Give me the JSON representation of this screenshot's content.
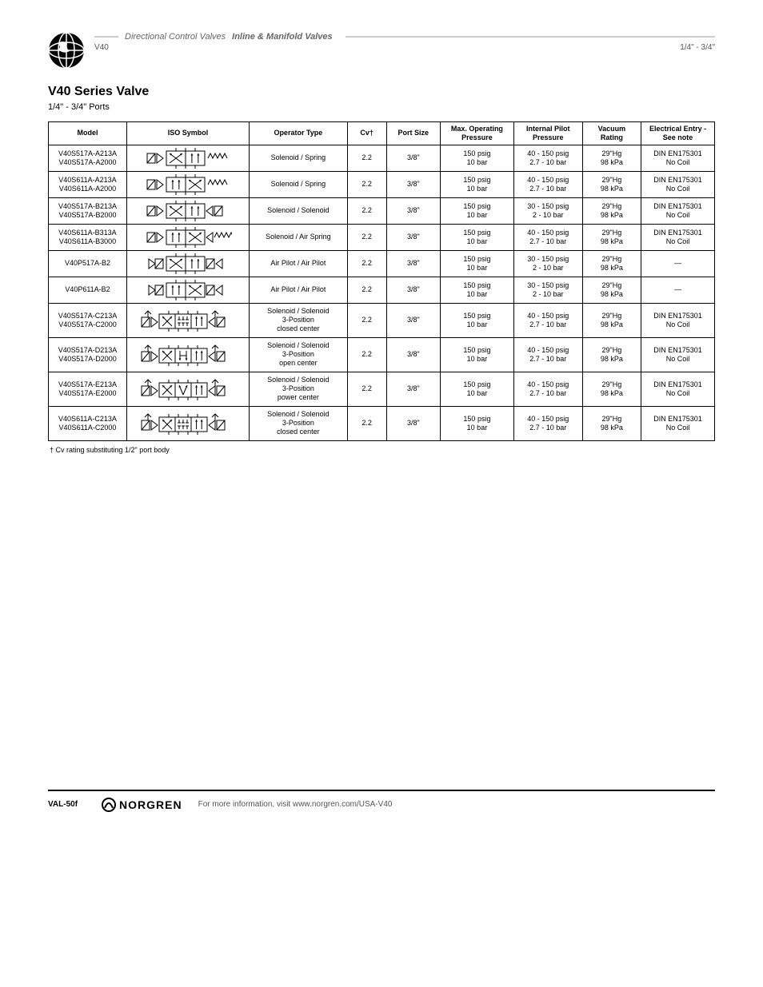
{
  "header": {
    "breadcrumb_prefix": "Directional Control Valves",
    "breadcrumb_main": "Inline & Manifold Valves",
    "sub_left": "V40",
    "sub_right": "1/4\" - 3/4\""
  },
  "section": {
    "title": "V40 Series Valve",
    "sub": "1/4\" - 3/4\" Ports"
  },
  "table": {
    "columns": [
      "Model",
      "ISO Symbol",
      "Operator Type",
      "Cv†",
      "Port Size",
      "Max. Operating Pressure",
      "Internal Pilot Pressure",
      "Vacuum Rating",
      "Electrical Entry - See note"
    ],
    "rows": [
      {
        "model_lines": [
          "V40S517A-A213A",
          "V40S517A-A2000"
        ],
        "symbol": "sol2_spring_2pos_open",
        "op": "Solenoid / Spring",
        "cv": "2.2",
        "port": "3/8\"",
        "press_lines": [
          "150 psig",
          "10 bar"
        ],
        "pilot_lines": [
          "40 - 150 psig",
          "2.7 - 10 bar"
        ],
        "vac_lines": [
          "29\"Hg",
          "98 kPa"
        ],
        "note_lines": [
          "DIN EN175301",
          "No Coil"
        ]
      },
      {
        "model_lines": [
          "V40S611A-A213A",
          "V40S611A-A2000"
        ],
        "symbol": "sol2_spring_2pos_closed",
        "op": "Solenoid / Spring",
        "cv": "2.2",
        "port": "3/8\"",
        "press_lines": [
          "150 psig",
          "10 bar"
        ],
        "pilot_lines": [
          "40 - 150 psig",
          "2.7 - 10 bar"
        ],
        "vac_lines": [
          "29\"Hg",
          "98 kPa"
        ],
        "note_lines": [
          "DIN EN175301",
          "No Coil"
        ]
      },
      {
        "model_lines": [
          "V40S517A-B213A",
          "V40S517A-B2000"
        ],
        "symbol": "sol2_sol_2pos_open",
        "op": "Solenoid / Solenoid",
        "cv": "2.2",
        "port": "3/8\"",
        "press_lines": [
          "150 psig",
          "10 bar"
        ],
        "pilot_lines": [
          "30 - 150 psig",
          "2 - 10 bar"
        ],
        "vac_lines": [
          "29\"Hg",
          "98 kPa"
        ],
        "note_lines": [
          "DIN EN175301",
          "No Coil"
        ]
      },
      {
        "model_lines": [
          "V40S611A-B313A",
          "V40S611A-B3000"
        ],
        "symbol": "sol2_spring_2pos_closed_b",
        "op": "Solenoid / Air Spring",
        "cv": "2.2",
        "port": "3/8\"",
        "press_lines": [
          "150 psig",
          "10 bar"
        ],
        "pilot_lines": [
          "40 - 150 psig",
          "2.7 - 10 bar"
        ],
        "vac_lines": [
          "29\"Hg",
          "98 kPa"
        ],
        "note_lines": [
          "DIN EN175301",
          "No Coil"
        ]
      },
      {
        "model_lines": [
          "V40P517A-B2"
        ],
        "symbol": "pilot_pilot_2pos_open",
        "op": "Air Pilot / Air Pilot",
        "cv": "2.2",
        "port": "3/8\"",
        "press_lines": [
          "150 psig",
          "10 bar"
        ],
        "pilot_lines": [
          "30 - 150 psig",
          "2 - 10 bar"
        ],
        "vac_lines": [
          "29\"Hg",
          "98 kPa"
        ],
        "note_lines": [
          "—"
        ]
      },
      {
        "model_lines": [
          "V40P611A-B2"
        ],
        "symbol": "pilot_pilot_2pos_closed",
        "op": "Air Pilot / Air Pilot",
        "cv": "2.2",
        "port": "3/8\"",
        "press_lines": [
          "150 psig",
          "10 bar"
        ],
        "pilot_lines": [
          "30 - 150 psig",
          "2 - 10 bar"
        ],
        "vac_lines": [
          "29\"Hg",
          "98 kPa"
        ],
        "note_lines": [
          "—"
        ]
      },
      {
        "model_lines": [
          "V40S517A-C213A",
          "V40S517A-C2000"
        ],
        "symbol": "sol3_closed_center",
        "op_lines": [
          "Solenoid / Solenoid",
          "3-Position",
          "closed center"
        ],
        "cv": "2.2",
        "port": "3/8\"",
        "press_lines": [
          "150 psig",
          "10 bar"
        ],
        "pilot_lines": [
          "40 - 150 psig",
          "2.7 - 10 bar"
        ],
        "vac_lines": [
          "29\"Hg",
          "98 kPa"
        ],
        "note_lines": [
          "DIN EN175301",
          "No Coil"
        ]
      },
      {
        "model_lines": [
          "V40S517A-D213A",
          "V40S517A-D2000"
        ],
        "symbol": "sol3_open_center",
        "op_lines": [
          "Solenoid / Solenoid",
          "3-Position",
          "open center"
        ],
        "cv": "2.2",
        "port": "3/8\"",
        "press_lines": [
          "150 psig",
          "10 bar"
        ],
        "pilot_lines": [
          "40 - 150 psig",
          "2.7 - 10 bar"
        ],
        "vac_lines": [
          "29\"Hg",
          "98 kPa"
        ],
        "note_lines": [
          "DIN EN175301",
          "No Coil"
        ]
      },
      {
        "model_lines": [
          "V40S517A-E213A",
          "V40S517A-E2000"
        ],
        "symbol": "sol3_power_center",
        "op_lines": [
          "Solenoid / Solenoid",
          "3-Position",
          "power center"
        ],
        "cv": "2.2",
        "port": "3/8\"",
        "press_lines": [
          "150 psig",
          "10 bar"
        ],
        "pilot_lines": [
          "40 - 150 psig",
          "2.7 - 10 bar"
        ],
        "vac_lines": [
          "29\"Hg",
          "98 kPa"
        ],
        "note_lines": [
          "DIN EN175301",
          "No Coil"
        ]
      },
      {
        "model_lines": [
          "V40S611A-C213A",
          "V40S611A-C2000"
        ],
        "symbol": "sol3_closed_center_611",
        "op_lines": [
          "Solenoid / Solenoid",
          "3-Position",
          "closed center"
        ],
        "cv": "2.2",
        "port": "3/8\"",
        "press_lines": [
          "150 psig",
          "10 bar"
        ],
        "pilot_lines": [
          "40 - 150 psig",
          "2.7 - 10 bar"
        ],
        "vac_lines": [
          "29\"Hg",
          "98 kPa"
        ],
        "note_lines": [
          "DIN EN175301",
          "No Coil"
        ]
      }
    ],
    "dagger": "† Cv rating substituting 1/2\" port body"
  },
  "footer": {
    "page": "VAL-50f",
    "brand": "NORGREN",
    "tagline": "For more information, visit www.norgren.com/USA-V40"
  },
  "colors": {
    "text": "#000000",
    "muted": "#666666",
    "rule": "#cccccc",
    "bg": "#ffffff"
  }
}
